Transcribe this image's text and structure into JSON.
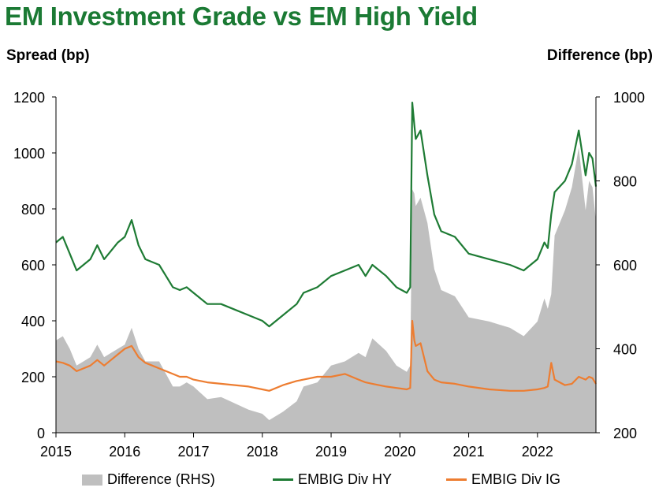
{
  "header": {
    "title": "EM Investment Grade vs EM High Yield",
    "left_axis_label": "Spread (bp)",
    "right_axis_label": "Difference (bp)"
  },
  "legend": {
    "diff_label": "Difference (RHS)",
    "hy_label": "EMBIG Div HY",
    "ig_label": "EMBIG Div IG"
  },
  "colors": {
    "title": "#1b7a34",
    "hy": "#1e7b34",
    "ig": "#ed7d31",
    "diff": "#bfbfbf"
  },
  "chart_data": {
    "type": "line",
    "x_label": "",
    "x_ticks": [
      "2015",
      "2016",
      "2017",
      "2018",
      "2019",
      "2020",
      "2021",
      "2022"
    ],
    "y_left": {
      "label": "Spread (bp)",
      "range": [
        0,
        1200
      ],
      "ticks": [
        "0",
        "200",
        "400",
        "600",
        "800",
        "1000",
        "1200"
      ]
    },
    "y_right": {
      "label": "Difference (bp)",
      "range": [
        200,
        1000
      ],
      "ticks": [
        "200",
        "400",
        "600",
        "800",
        "1000"
      ]
    },
    "grid": false,
    "legend_position": "bottom",
    "x": [
      2015.0,
      2015.1,
      2015.2,
      2015.3,
      2015.4,
      2015.5,
      2015.6,
      2015.7,
      2015.8,
      2015.9,
      2016.0,
      2016.1,
      2016.2,
      2016.3,
      2016.4,
      2016.5,
      2016.6,
      2016.7,
      2016.8,
      2016.9,
      2017.0,
      2017.2,
      2017.4,
      2017.6,
      2017.8,
      2018.0,
      2018.1,
      2018.3,
      2018.5,
      2018.6,
      2018.8,
      2019.0,
      2019.2,
      2019.4,
      2019.5,
      2019.6,
      2019.8,
      2019.95,
      2020.1,
      2020.15,
      2020.18,
      2020.21,
      2020.23,
      2020.3,
      2020.4,
      2020.5,
      2020.6,
      2020.8,
      2021.0,
      2021.3,
      2021.6,
      2021.8,
      2022.0,
      2022.1,
      2022.15,
      2022.2,
      2022.25,
      2022.4,
      2022.5,
      2022.6,
      2022.7,
      2022.75,
      2022.8,
      2022.85
    ],
    "series": [
      {
        "name": "EMBIG Div HY",
        "axis": "left",
        "style": "line",
        "values": [
          680,
          700,
          640,
          580,
          600,
          620,
          670,
          620,
          650,
          680,
          700,
          760,
          670,
          620,
          610,
          600,
          560,
          520,
          510,
          520,
          500,
          460,
          460,
          440,
          420,
          400,
          380,
          420,
          460,
          500,
          520,
          560,
          580,
          600,
          560,
          600,
          560,
          520,
          500,
          520,
          1180,
          1100,
          1050,
          1080,
          920,
          780,
          720,
          700,
          640,
          620,
          600,
          580,
          620,
          680,
          660,
          780,
          860,
          900,
          960,
          1080,
          920,
          1000,
          980,
          880
        ]
      },
      {
        "name": "EMBIG Div IG",
        "axis": "left",
        "style": "line",
        "values": [
          255,
          250,
          240,
          220,
          230,
          240,
          260,
          240,
          260,
          280,
          300,
          310,
          270,
          250,
          240,
          230,
          220,
          210,
          200,
          200,
          190,
          180,
          175,
          170,
          165,
          155,
          150,
          170,
          185,
          190,
          200,
          200,
          210,
          190,
          180,
          175,
          165,
          160,
          155,
          160,
          400,
          330,
          310,
          320,
          220,
          190,
          180,
          175,
          165,
          155,
          150,
          150,
          155,
          160,
          165,
          250,
          190,
          170,
          175,
          200,
          190,
          200,
          195,
          175
        ]
      },
      {
        "name": "Difference (RHS)",
        "axis": "right",
        "style": "area",
        "values": [
          420,
          430,
          400,
          360,
          370,
          380,
          410,
          380,
          390,
          400,
          410,
          450,
          400,
          370,
          370,
          370,
          340,
          310,
          310,
          320,
          310,
          280,
          285,
          270,
          255,
          245,
          230,
          250,
          275,
          310,
          320,
          360,
          370,
          390,
          380,
          425,
          395,
          360,
          345,
          360,
          780,
          770,
          740,
          760,
          700,
          590,
          540,
          525,
          475,
          465,
          450,
          430,
          465,
          520,
          495,
          530,
          670,
          730,
          785,
          880,
          730,
          800,
          785,
          705
        ]
      }
    ]
  }
}
